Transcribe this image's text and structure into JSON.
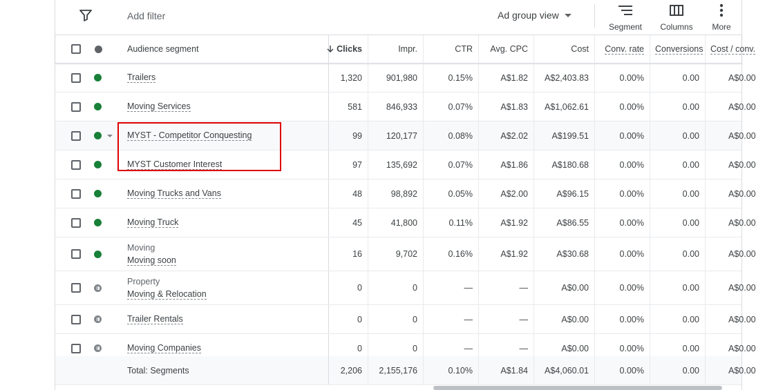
{
  "toolbar": {
    "add_filter": "Add filter",
    "view_label": "Ad group view",
    "segment_label": "Segment",
    "columns_label": "Columns",
    "more_label": "More"
  },
  "columns": {
    "segment": "Audience segment",
    "clicks": "Clicks",
    "impr": "Impr.",
    "ctr": "CTR",
    "avg_cpc": "Avg. CPC",
    "cost": "Cost",
    "conv_rate": "Conv. rate",
    "conversions": "Conversions",
    "cost_conv": "Cost / conv."
  },
  "rows": [
    {
      "parent": "",
      "name": "Trailers",
      "status": "enabled",
      "clicks": "1,320",
      "impr": "901,980",
      "ctr": "0.15%",
      "avg_cpc": "A$1.82",
      "cost": "A$2,403.83",
      "conv_rate": "0.00%",
      "conversions": "0.00",
      "cost_conv": "A$0.00"
    },
    {
      "parent": "",
      "name": "Moving Services",
      "status": "enabled",
      "clicks": "581",
      "impr": "846,933",
      "ctr": "0.07%",
      "avg_cpc": "A$1.83",
      "cost": "A$1,062.61",
      "conv_rate": "0.00%",
      "conversions": "0.00",
      "cost_conv": "A$0.00"
    },
    {
      "parent": "",
      "name": "MYST - Competitor Conquesting",
      "status": "enabled",
      "clicks": "99",
      "impr": "120,177",
      "ctr": "0.08%",
      "avg_cpc": "A$2.02",
      "cost": "A$199.51",
      "conv_rate": "0.00%",
      "conversions": "0.00",
      "cost_conv": "A$0.00"
    },
    {
      "parent": "",
      "name": "MYST Customer Interest",
      "status": "enabled",
      "clicks": "97",
      "impr": "135,692",
      "ctr": "0.07%",
      "avg_cpc": "A$1.86",
      "cost": "A$180.68",
      "conv_rate": "0.00%",
      "conversions": "0.00",
      "cost_conv": "A$0.00"
    },
    {
      "parent": "",
      "name": "Moving Trucks and Vans",
      "status": "enabled",
      "clicks": "48",
      "impr": "98,892",
      "ctr": "0.05%",
      "avg_cpc": "A$2.00",
      "cost": "A$96.15",
      "conv_rate": "0.00%",
      "conversions": "0.00",
      "cost_conv": "A$0.00"
    },
    {
      "parent": "",
      "name": "Moving Truck",
      "status": "enabled",
      "clicks": "45",
      "impr": "41,800",
      "ctr": "0.11%",
      "avg_cpc": "A$1.92",
      "cost": "A$86.55",
      "conv_rate": "0.00%",
      "conversions": "0.00",
      "cost_conv": "A$0.00"
    },
    {
      "parent": "Moving",
      "name": "Moving soon",
      "status": "enabled",
      "clicks": "16",
      "impr": "9,702",
      "ctr": "0.16%",
      "avg_cpc": "A$1.92",
      "cost": "A$30.68",
      "conv_rate": "0.00%",
      "conversions": "0.00",
      "cost_conv": "A$0.00"
    },
    {
      "parent": "Property",
      "name": "Moving & Relocation",
      "status": "paused",
      "clicks": "0",
      "impr": "0",
      "ctr": "—",
      "avg_cpc": "—",
      "cost": "A$0.00",
      "conv_rate": "0.00%",
      "conversions": "0.00",
      "cost_conv": "A$0.00"
    },
    {
      "parent": "",
      "name": "Trailer Rentals",
      "status": "paused",
      "clicks": "0",
      "impr": "0",
      "ctr": "—",
      "avg_cpc": "—",
      "cost": "A$0.00",
      "conv_rate": "0.00%",
      "conversions": "0.00",
      "cost_conv": "A$0.00"
    },
    {
      "parent": "",
      "name": "Moving Companies",
      "status": "paused",
      "clicks": "0",
      "impr": "0",
      "ctr": "—",
      "avg_cpc": "—",
      "cost": "A$0.00",
      "conv_rate": "0.00%",
      "conversions": "0.00",
      "cost_conv": "A$0.00"
    }
  ],
  "total": {
    "label": "Total: Segments",
    "clicks": "2,206",
    "impr": "2,155,176",
    "ctr": "0.10%",
    "avg_cpc": "A$1.84",
    "cost": "A$4,060.01",
    "conv_rate": "0.00%",
    "conversions": "0.00",
    "cost_conv": "A$0.00"
  },
  "colors": {
    "enabled": "#188038",
    "paused": "#80868b",
    "highlight": "#dd0000"
  }
}
